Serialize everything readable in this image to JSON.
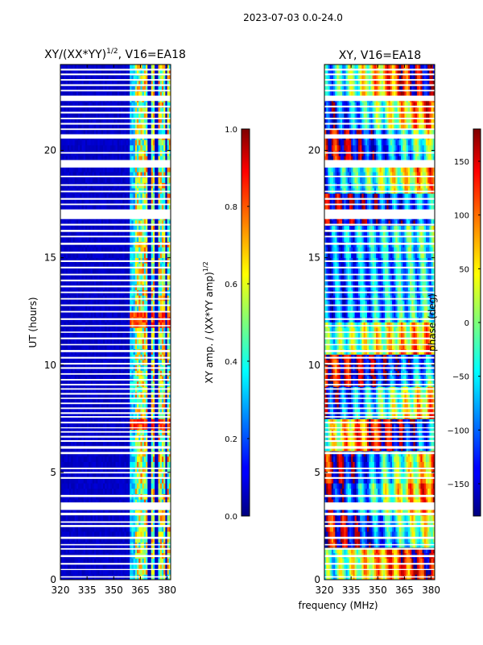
{
  "suptitle": "2023-07-03 0.0-24.0",
  "shared": {
    "xlabel": "frequency (MHz)",
    "ylabel": "UT (hours)",
    "xticks": [
      320,
      335,
      350,
      365,
      380
    ],
    "yticks": [
      0,
      5,
      10,
      15,
      20
    ],
    "ylim": [
      0,
      24
    ],
    "xlim": [
      320,
      382
    ]
  },
  "colors": {
    "masked": "#ffffff",
    "axis": "#000000"
  },
  "chart_data": [
    {
      "type": "heatmap",
      "title_main": "XY/(XX*YY)",
      "title_sup": "1/2",
      "title_tail": ", V16=EA18",
      "colormap": "jet",
      "xlim": [
        320,
        382
      ],
      "ylim": [
        0,
        24
      ],
      "colorbar": {
        "label_main": "XY amp. / (XX*YY amp)",
        "label_sup": "1/2",
        "range": [
          0.0,
          1.0
        ],
        "ticks": [
          "0.0",
          "0.2",
          "0.4",
          "0.6",
          "0.8",
          "1.0"
        ],
        "tick_values": [
          0.0,
          0.2,
          0.4,
          0.6,
          0.8,
          1.0
        ]
      },
      "description_values": {
        "background_level": 0.05,
        "rfi_channel_bands_mhz": [
          [
            359,
            364
          ],
          [
            364,
            369
          ],
          [
            371,
            373
          ],
          [
            375,
            379
          ],
          [
            380,
            382
          ]
        ],
        "rfi_level_range": [
          0.3,
          0.8
        ],
        "strong_rfi_ut_hours": [
          [
            6.9,
            7.4
          ],
          [
            11.8,
            12.6
          ]
        ]
      }
    },
    {
      "type": "heatmap",
      "title_main": "XY, V16=EA18",
      "colormap": "jet",
      "xlim": [
        320,
        382
      ],
      "ylim": [
        0,
        24
      ],
      "colorbar": {
        "label_main": "phase (deg)",
        "range": [
          -180,
          180
        ],
        "ticks": [
          "−150",
          "−100",
          "−50",
          "0",
          "50",
          "100",
          "150"
        ],
        "tick_values": [
          -150,
          -100,
          -50,
          0,
          50,
          100,
          150
        ]
      },
      "description_values": {
        "phase_range_deg": [
          -180,
          180
        ],
        "note": "Phase wraps across frequency with vertical striping; masked UT rows shown white."
      }
    }
  ],
  "masked_ut_rows": [
    [
      0.1,
      0.16
    ],
    [
      0.45,
      0.5
    ],
    [
      0.7,
      0.78
    ],
    [
      1.05,
      1.15
    ],
    [
      1.4,
      1.47
    ],
    [
      1.6,
      1.66
    ],
    [
      1.9,
      2.0
    ],
    [
      2.45,
      2.55
    ],
    [
      2.65,
      2.72
    ],
    [
      3.0,
      3.12
    ],
    [
      3.25,
      3.6
    ],
    [
      3.85,
      3.95
    ],
    [
      4.7,
      4.78
    ],
    [
      4.95,
      5.02
    ],
    [
      5.15,
      5.22
    ],
    [
      5.85,
      5.95
    ],
    [
      6.1,
      6.22
    ],
    [
      6.42,
      6.5
    ],
    [
      6.62,
      6.7
    ],
    [
      6.85,
      6.92
    ],
    [
      7.05,
      7.1
    ],
    [
      7.28,
      7.36
    ],
    [
      7.55,
      7.62
    ],
    [
      7.72,
      7.8
    ],
    [
      7.95,
      8.02
    ],
    [
      8.18,
      8.25
    ],
    [
      8.42,
      8.48
    ],
    [
      8.62,
      8.7
    ],
    [
      8.85,
      8.92
    ],
    [
      9.05,
      9.12
    ],
    [
      9.28,
      9.35
    ],
    [
      9.55,
      9.62
    ],
    [
      9.82,
      9.9
    ],
    [
      10.02,
      10.1
    ],
    [
      10.3,
      10.38
    ],
    [
      10.6,
      10.7
    ],
    [
      10.92,
      10.98
    ],
    [
      11.2,
      11.28
    ],
    [
      11.5,
      11.56
    ],
    [
      11.8,
      11.86
    ],
    [
      12.1,
      12.18
    ],
    [
      12.45,
      12.52
    ],
    [
      12.75,
      12.82
    ],
    [
      13.05,
      13.12
    ],
    [
      13.35,
      13.42
    ],
    [
      13.62,
      13.7
    ],
    [
      13.9,
      13.98
    ],
    [
      14.18,
      14.25
    ],
    [
      14.5,
      14.58
    ],
    [
      14.8,
      14.88
    ],
    [
      15.2,
      15.28
    ],
    [
      15.6,
      15.7
    ],
    [
      15.95,
      16.02
    ],
    [
      16.2,
      16.3
    ],
    [
      16.5,
      16.58
    ],
    [
      16.8,
      17.25
    ],
    [
      17.45,
      17.52
    ],
    [
      17.7,
      17.78
    ],
    [
      18.05,
      18.12
    ],
    [
      18.35,
      18.42
    ],
    [
      18.75,
      18.82
    ],
    [
      19.2,
      19.55
    ],
    [
      19.85,
      19.92
    ],
    [
      20.55,
      20.75
    ],
    [
      20.95,
      21.02
    ],
    [
      21.2,
      21.28
    ],
    [
      21.45,
      21.52
    ],
    [
      21.72,
      21.8
    ],
    [
      22.0,
      22.08
    ],
    [
      22.3,
      22.55
    ],
    [
      22.75,
      22.82
    ],
    [
      23.0,
      23.08
    ],
    [
      23.25,
      23.32
    ],
    [
      23.5,
      23.58
    ],
    [
      23.72,
      23.8
    ]
  ]
}
